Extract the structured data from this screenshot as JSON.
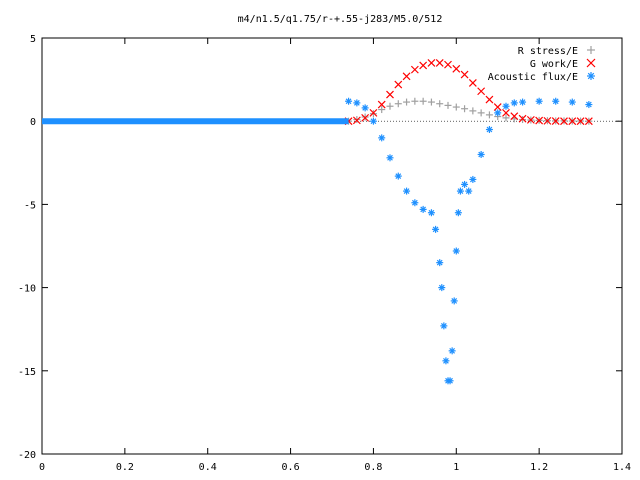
{
  "chart_data": {
    "type": "scatter",
    "title": "m4/n1.5/q1.75/r-+.55-j283/M5.0/512",
    "xlabel": "",
    "ylabel": "",
    "xlim": [
      0,
      1.4
    ],
    "ylim": [
      -20,
      5
    ],
    "x_ticks": [
      "0",
      "0.2",
      "0.4",
      "0.6",
      "0.8",
      "1",
      "1.2",
      "1.4"
    ],
    "y_ticks": [
      "5",
      "0",
      "-5",
      "-10",
      "-15",
      "-20"
    ],
    "x_tick_values": [
      0,
      0.2,
      0.4,
      0.6,
      0.8,
      1.0,
      1.2,
      1.4
    ],
    "y_tick_values": [
      5,
      0,
      -5,
      -10,
      -15,
      -20
    ],
    "grid": false,
    "legend_position": "top-right",
    "series": [
      {
        "name": "R stress/E",
        "marker": "+",
        "color": "#a0a0a0",
        "x": [
          0.74,
          0.76,
          0.78,
          0.8,
          0.82,
          0.84,
          0.86,
          0.88,
          0.9,
          0.92,
          0.94,
          0.96,
          0.98,
          1.0,
          1.02,
          1.04,
          1.06,
          1.08,
          1.1,
          1.12,
          1.14,
          1.16,
          1.18,
          1.2,
          1.22,
          1.24,
          1.26,
          1.28,
          1.3,
          1.32
        ],
        "y": [
          0.0,
          0.1,
          0.25,
          0.45,
          0.7,
          0.9,
          1.05,
          1.15,
          1.2,
          1.2,
          1.15,
          1.05,
          0.95,
          0.85,
          0.75,
          0.62,
          0.5,
          0.38,
          0.28,
          0.2,
          0.14,
          0.1,
          0.07,
          0.05,
          0.03,
          0.02,
          0.02,
          0.01,
          0.01,
          0.0
        ]
      },
      {
        "name": "G work/E",
        "marker": "x",
        "color": "#ff0000",
        "x": [
          0.74,
          0.76,
          0.78,
          0.8,
          0.82,
          0.84,
          0.86,
          0.88,
          0.9,
          0.92,
          0.94,
          0.96,
          0.98,
          1.0,
          1.02,
          1.04,
          1.06,
          1.08,
          1.1,
          1.12,
          1.14,
          1.16,
          1.18,
          1.2,
          1.22,
          1.24,
          1.26,
          1.28,
          1.3,
          1.32
        ],
        "y": [
          0.0,
          0.05,
          0.2,
          0.5,
          1.0,
          1.6,
          2.2,
          2.7,
          3.1,
          3.35,
          3.5,
          3.5,
          3.4,
          3.15,
          2.8,
          2.3,
          1.8,
          1.3,
          0.85,
          0.5,
          0.3,
          0.15,
          0.08,
          0.04,
          0.02,
          0.01,
          0.0,
          0.0,
          0.0,
          0.0
        ]
      },
      {
        "name": "Acoustic flux/E",
        "marker": "*",
        "color": "#1e90ff",
        "x": [
          0.74,
          0.76,
          0.78,
          0.8,
          0.82,
          0.84,
          0.86,
          0.88,
          0.9,
          0.92,
          0.94,
          0.95,
          0.96,
          0.965,
          0.97,
          0.975,
          0.98,
          0.985,
          0.99,
          0.995,
          1.0,
          1.005,
          1.01,
          1.02,
          1.03,
          1.04,
          1.06,
          1.08,
          1.1,
          1.12,
          1.14,
          1.16,
          1.2,
          1.24,
          1.28,
          1.32
        ],
        "y": [
          1.2,
          1.1,
          0.8,
          0.0,
          -1.0,
          -2.2,
          -3.3,
          -4.2,
          -4.9,
          -5.3,
          -5.5,
          -6.5,
          -8.5,
          -10.0,
          -12.3,
          -14.4,
          -15.6,
          -15.6,
          -13.8,
          -10.8,
          -7.8,
          -5.5,
          -4.2,
          -3.8,
          -4.2,
          -3.5,
          -2.0,
          -0.5,
          0.5,
          0.9,
          1.1,
          1.15,
          1.2,
          1.2,
          1.15,
          1.0
        ]
      }
    ]
  }
}
